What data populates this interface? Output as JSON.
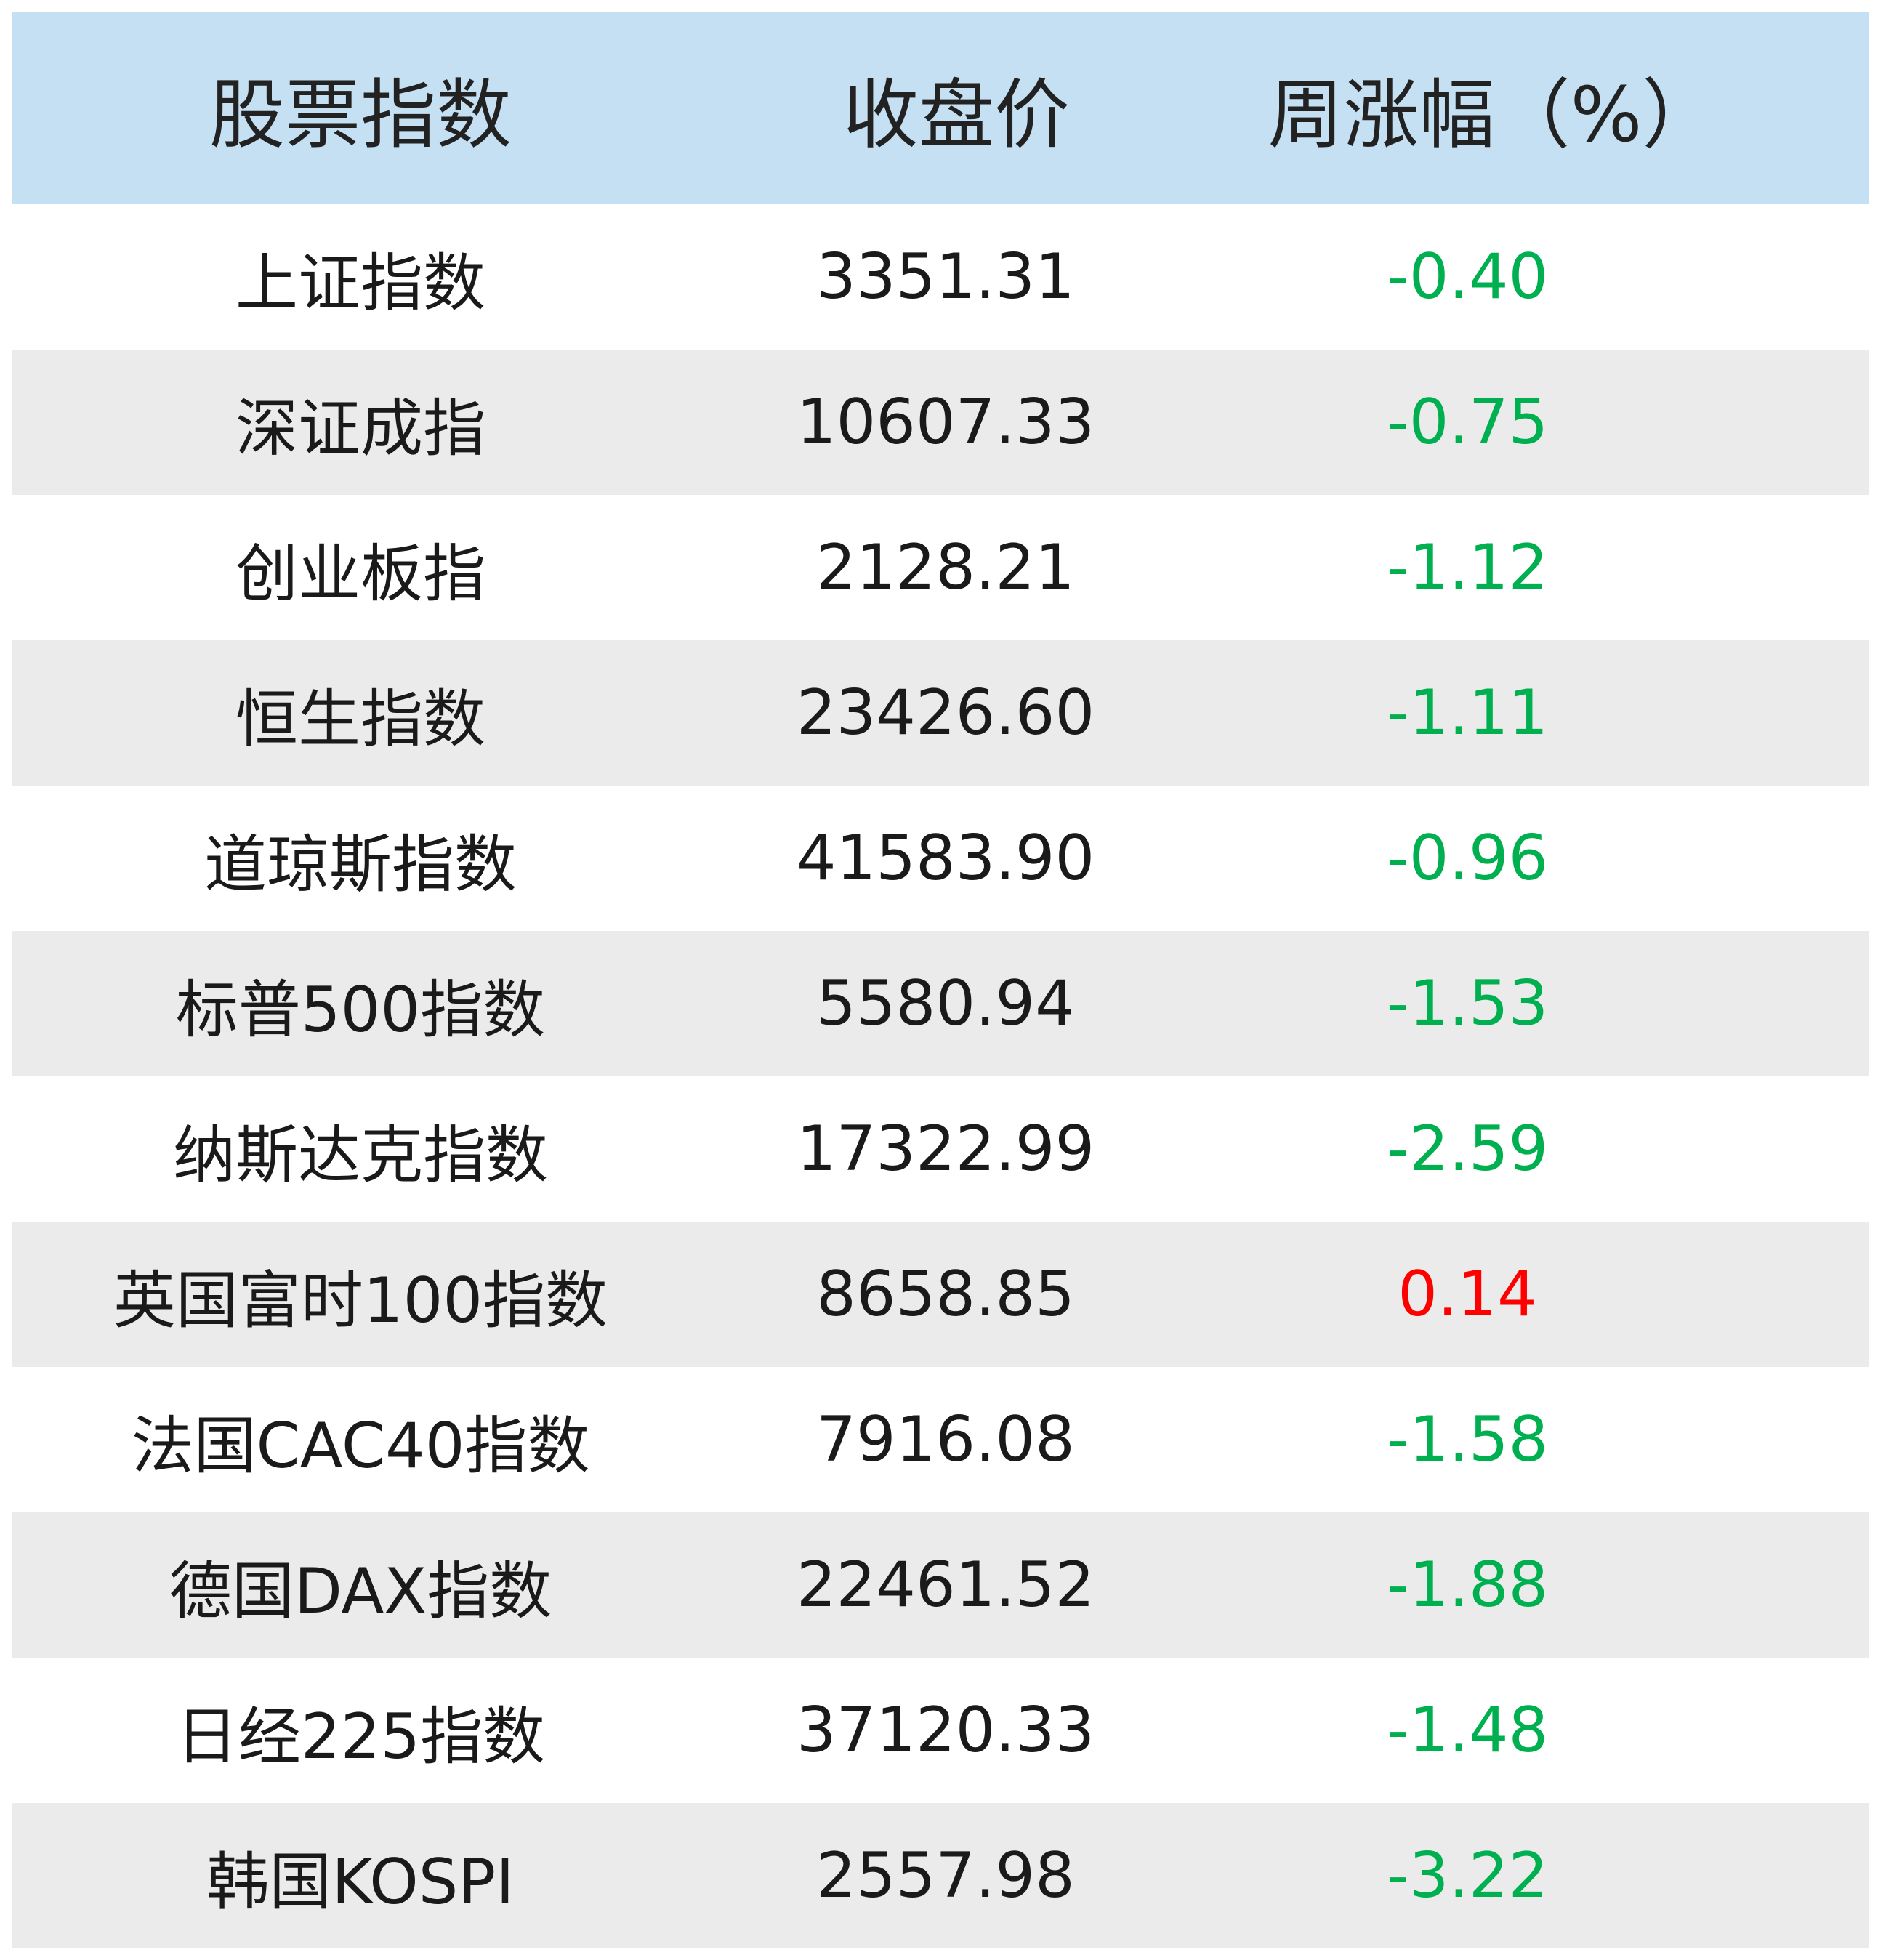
{
  "colors": {
    "header_bg": "#c5dff3",
    "row_shade": "#ebebeb",
    "down": "#00b050",
    "up": "#ff0000"
  },
  "chart_data": {
    "type": "table",
    "columns": [
      "股票指数",
      "收盘价",
      "周涨幅（%）"
    ],
    "rows": [
      {
        "name": "上证指数",
        "close": "3351.31",
        "change": "-0.40"
      },
      {
        "name": "深证成指",
        "close": "10607.33",
        "change": "-0.75"
      },
      {
        "name": "创业板指",
        "close": "2128.21",
        "change": "-1.12"
      },
      {
        "name": "恒生指数",
        "close": "23426.60",
        "change": "-1.11"
      },
      {
        "name": "道琼斯指数",
        "close": "41583.90",
        "change": "-0.96"
      },
      {
        "name": "标普500指数",
        "close": "5580.94",
        "change": "-1.53"
      },
      {
        "name": "纳斯达克指数",
        "close": "17322.99",
        "change": "-2.59"
      },
      {
        "name": "英国富时100指数",
        "close": "8658.85",
        "change": "0.14"
      },
      {
        "name": "法国CAC40指数",
        "close": "7916.08",
        "change": "-1.58"
      },
      {
        "name": "德国DAX指数",
        "close": "22461.52",
        "change": "-1.88"
      },
      {
        "name": "日经225指数",
        "close": "37120.33",
        "change": "-1.48"
      },
      {
        "name": "韩国KOSPI",
        "close": "2557.98",
        "change": "-3.22"
      }
    ]
  }
}
